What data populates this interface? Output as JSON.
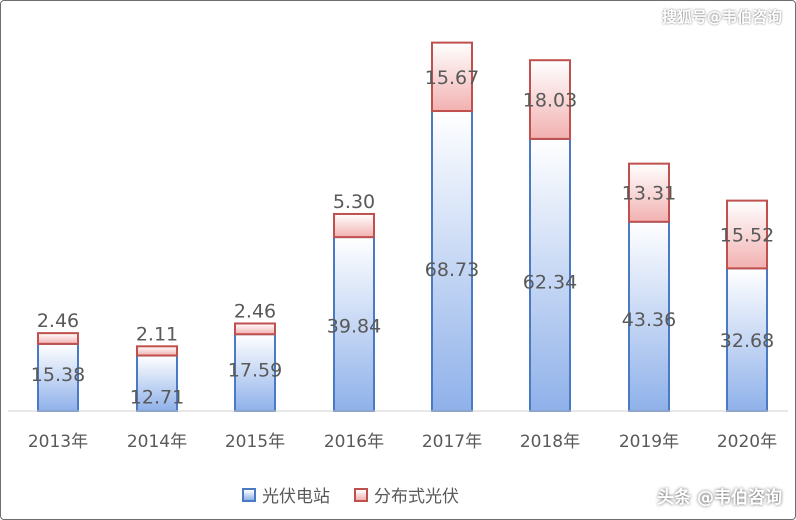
{
  "chart_data": {
    "type": "bar",
    "stacked": true,
    "categories": [
      "2013年",
      "2014年",
      "2015年",
      "2016年",
      "2017年",
      "2018年",
      "2019年",
      "2020年"
    ],
    "series": [
      {
        "name": "光伏电站",
        "values": [
          15.38,
          12.71,
          17.59,
          39.84,
          68.73,
          62.34,
          43.36,
          32.68
        ],
        "color": "#4a7ac4"
      },
      {
        "name": "分布式光伏",
        "values": [
          2.46,
          2.11,
          2.46,
          5.3,
          15.67,
          18.03,
          13.31,
          15.52
        ],
        "color": "#c0504d"
      }
    ],
    "ylim": [
      0,
      85
    ],
    "grid": false,
    "legend_position": "bottom"
  },
  "watermarks": {
    "top": "搜狐号@韦伯咨询",
    "bottom": "头条 @韦伯咨询"
  }
}
